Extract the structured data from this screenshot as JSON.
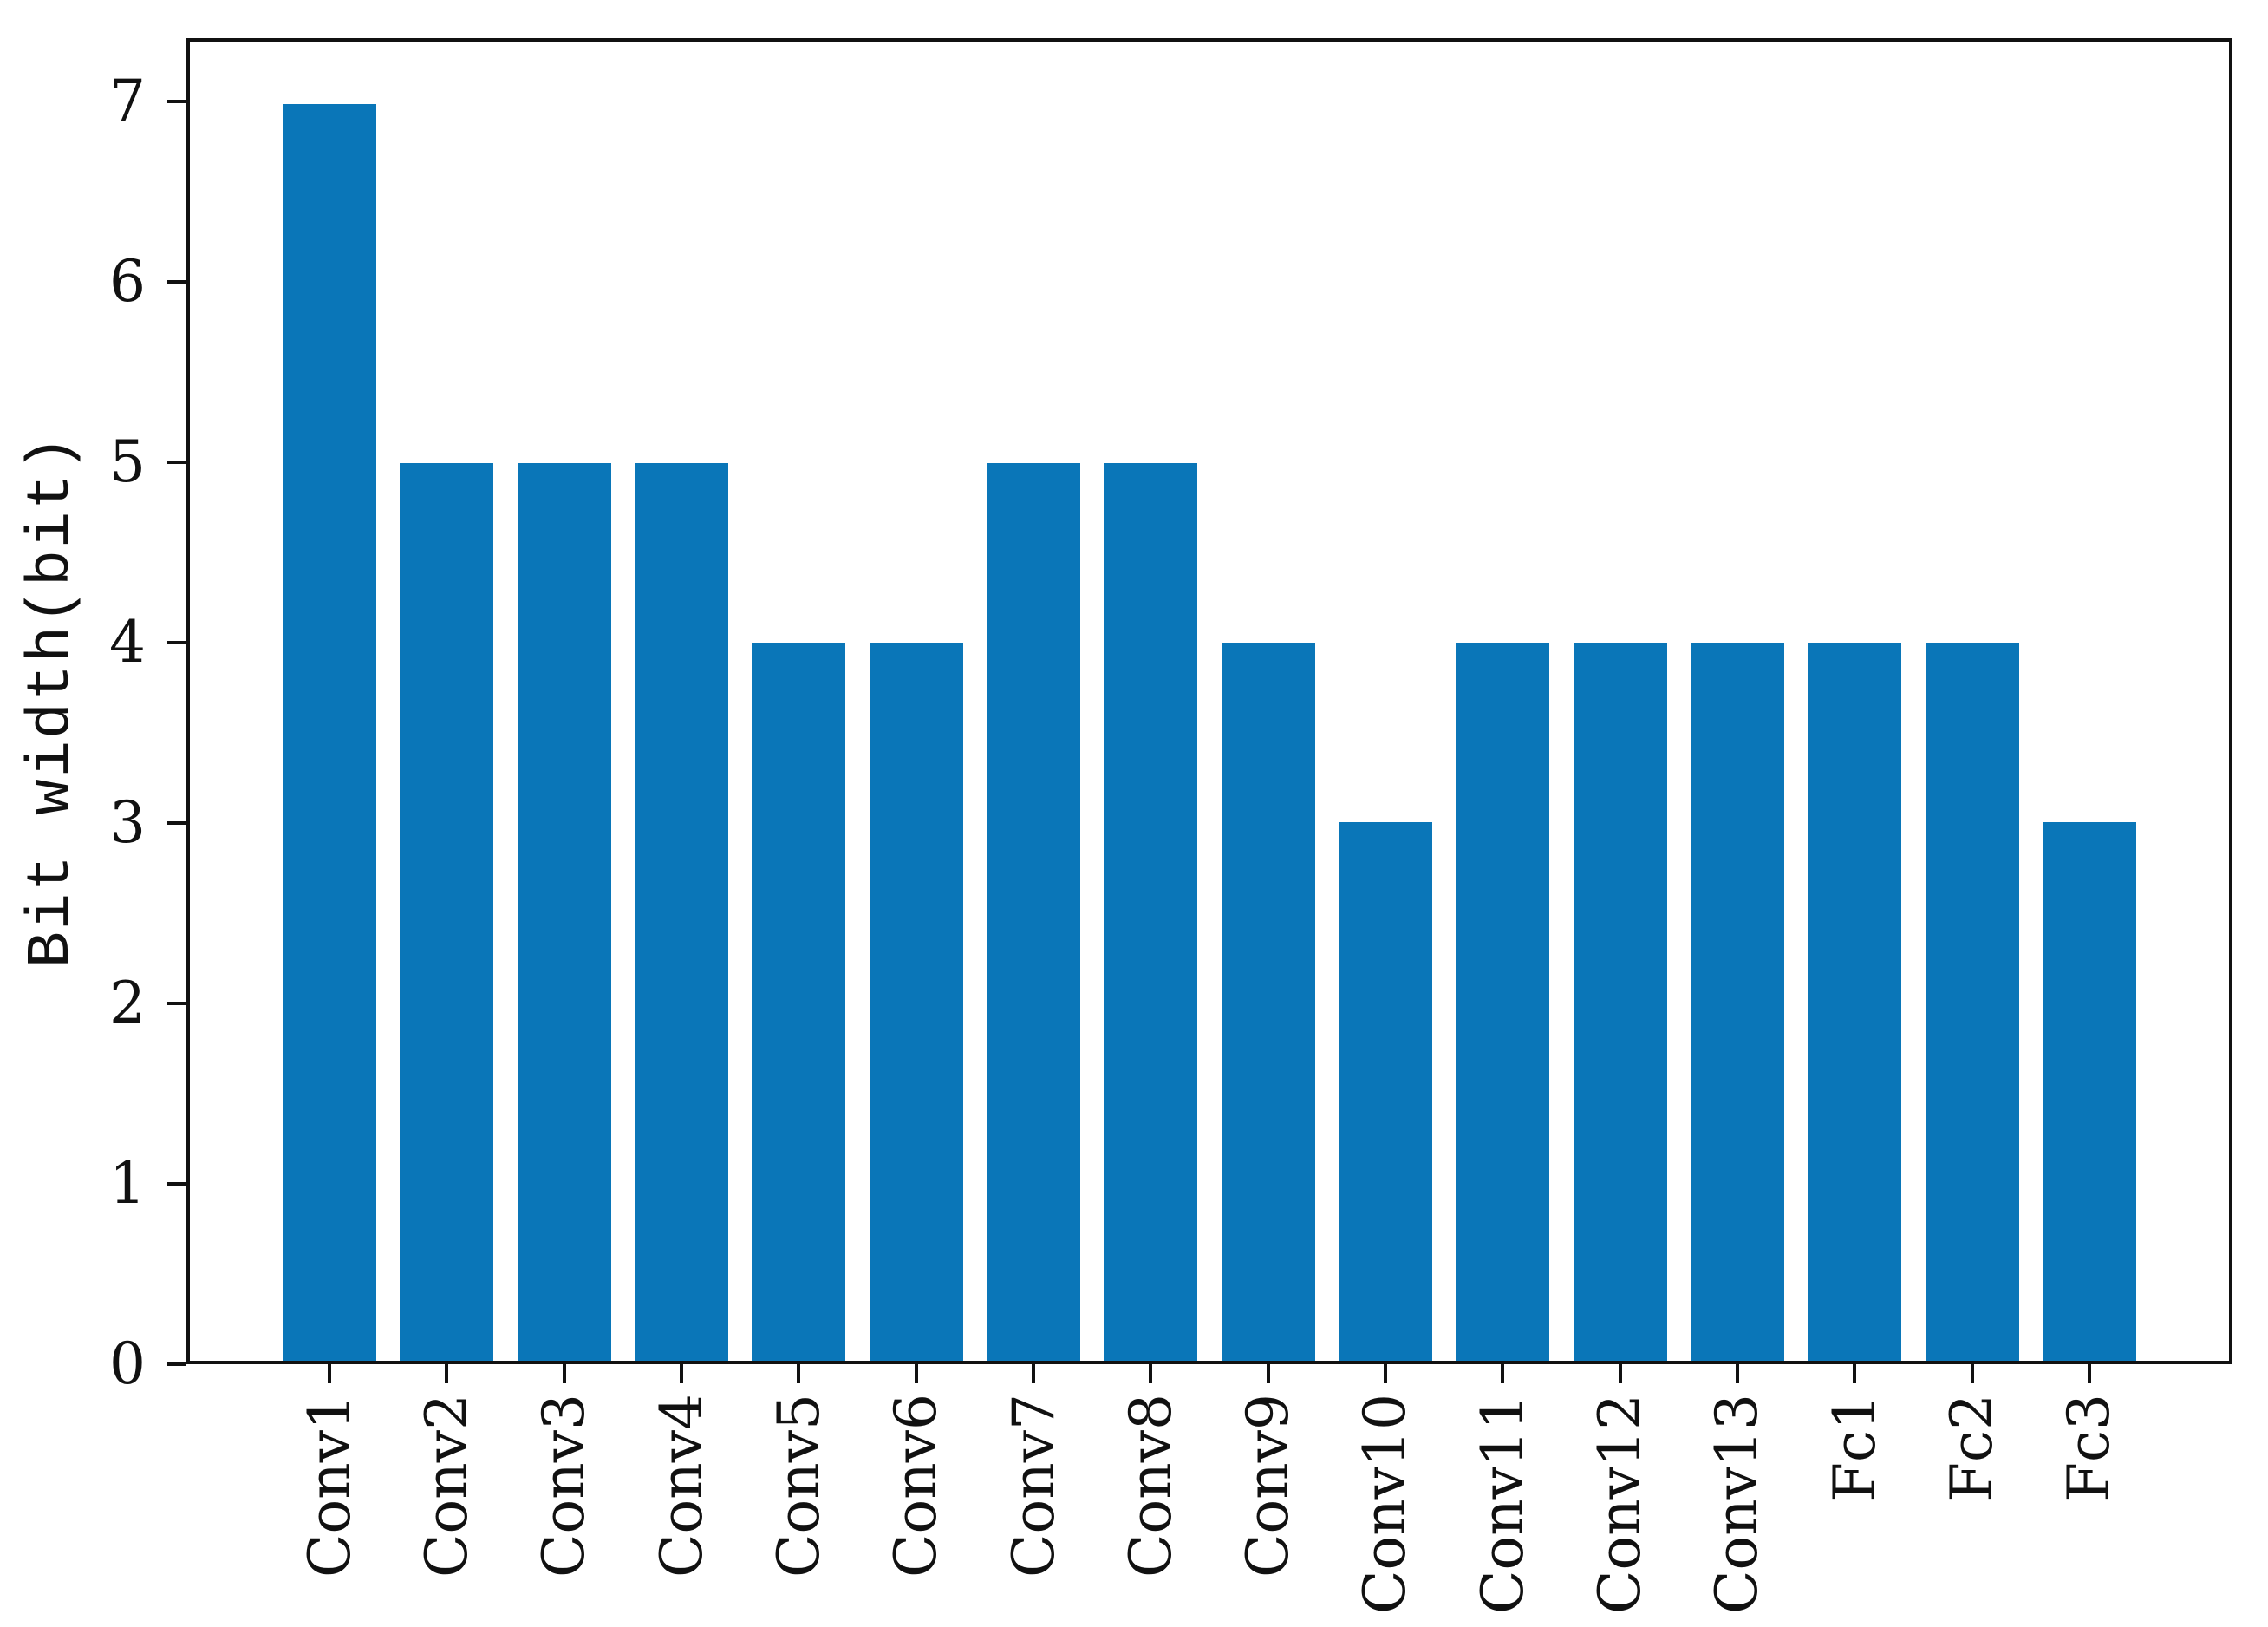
{
  "figure": {
    "background": "#ffffff"
  },
  "chart_data": {
    "type": "bar",
    "title": "",
    "xlabel": "",
    "ylabel": "Bit width(bit)",
    "categories": [
      "Conv1",
      "Conv2",
      "Conv3",
      "Conv4",
      "Conv5",
      "Conv6",
      "Conv7",
      "Conv8",
      "Conv9",
      "Conv10",
      "Conv11",
      "Conv12",
      "Conv13",
      "Fc1",
      "Fc2",
      "Fc3"
    ],
    "values": [
      7,
      5,
      5,
      5,
      4,
      4,
      5,
      5,
      4,
      3,
      4,
      4,
      4,
      4,
      4,
      3
    ],
    "yticks": [
      0,
      1,
      2,
      3,
      4,
      5,
      6,
      7
    ],
    "ylim": [
      0,
      7.35
    ],
    "grid": false,
    "legend": null,
    "bar_color": "#0a76b8",
    "axis_color": "#111111"
  }
}
